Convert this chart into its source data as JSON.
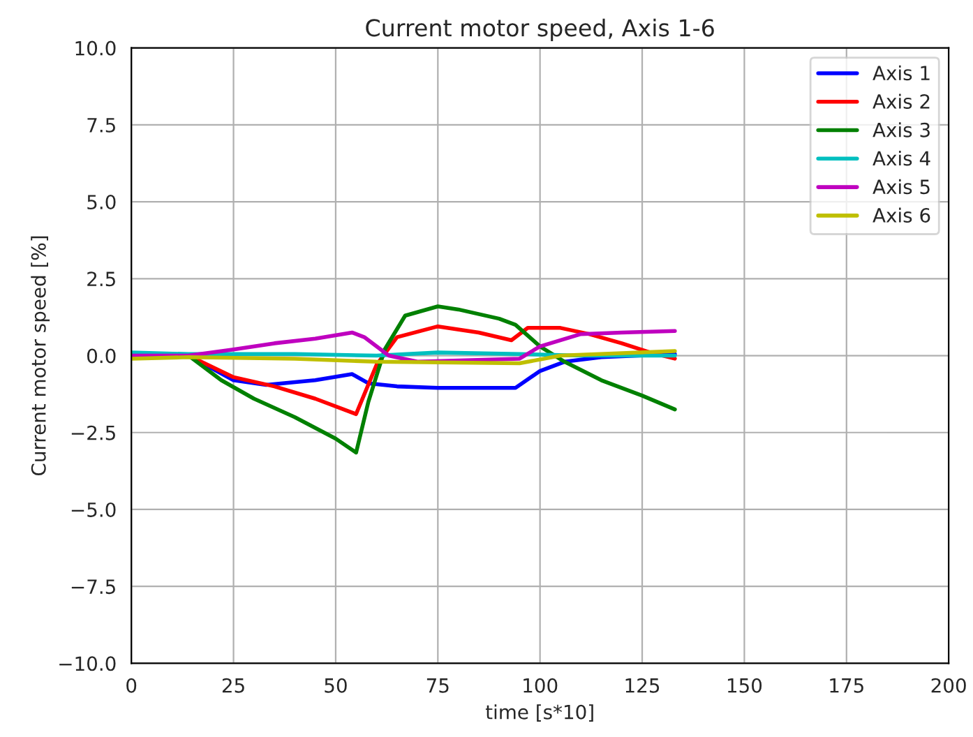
{
  "chart_data": {
    "type": "line",
    "title": "Current motor speed, Axis 1-6",
    "xlabel": "time [s*10]",
    "ylabel": "Current motor speed [%]",
    "xlim": [
      0,
      200
    ],
    "xticks": [
      0,
      25,
      50,
      75,
      100,
      125,
      150,
      175,
      200
    ],
    "ylim": [
      -10,
      10
    ],
    "yticks": [
      {
        "value": -10,
        "label": "−10.0"
      },
      {
        "value": -7.5,
        "label": "−7.5"
      },
      {
        "value": -5,
        "label": "−5.0"
      },
      {
        "value": -2.5,
        "label": "−2.5"
      },
      {
        "value": 0,
        "label": "0.0"
      },
      {
        "value": 2.5,
        "label": "2.5"
      },
      {
        "value": 5,
        "label": "5.0"
      },
      {
        "value": 7.5,
        "label": "7.5"
      },
      {
        "value": 10,
        "label": "10.0"
      }
    ],
    "grid": true,
    "legend": "top right",
    "series": [
      {
        "name": "Axis 1",
        "color": "#0000ff",
        "x": [
          0,
          14,
          25,
          33,
          45,
          54,
          58,
          65,
          75,
          85,
          94,
          100,
          106,
          115,
          125,
          133
        ],
        "values": [
          0,
          0,
          -0.8,
          -0.95,
          -0.8,
          -0.6,
          -0.9,
          -1.0,
          -1.05,
          -1.05,
          -1.05,
          -0.5,
          -0.2,
          -0.05,
          null,
          0.05
        ]
      },
      {
        "name": "Axis 2",
        "color": "#ff0000",
        "x": [
          0,
          14,
          25,
          35,
          45,
          55,
          60,
          65,
          75,
          85,
          93,
          97,
          105,
          112,
          120,
          127,
          133
        ],
        "values": [
          0,
          0,
          -0.7,
          -1.0,
          -1.4,
          -1.9,
          -0.3,
          0.6,
          0.95,
          0.75,
          0.5,
          0.9,
          0.9,
          0.7,
          0.4,
          0.1,
          -0.1
        ]
      },
      {
        "name": "Axis 3",
        "color": "#008000",
        "x": [
          0,
          14,
          22,
          30,
          40,
          50,
          55,
          58,
          62,
          67,
          75,
          80,
          90,
          94,
          100,
          106,
          115,
          125,
          133
        ],
        "values": [
          0,
          0,
          -0.8,
          -1.4,
          -2.0,
          -2.7,
          -3.15,
          -1.5,
          0.2,
          1.3,
          1.6,
          1.5,
          1.2,
          1.0,
          0.3,
          -0.2,
          -0.8,
          -1.3,
          -1.75
        ]
      },
      {
        "name": "Axis 4",
        "color": "#00bfbf",
        "x": [
          0,
          14,
          40,
          60,
          75,
          95,
          110,
          133
        ],
        "values": [
          0.1,
          0.05,
          0.05,
          0.0,
          0.1,
          0.05,
          0.0,
          0.0
        ]
      },
      {
        "name": "Axis 5",
        "color": "#bf00bf",
        "x": [
          0,
          14,
          25,
          35,
          45,
          54,
          57,
          63,
          70,
          95,
          100,
          110,
          120,
          133
        ],
        "values": [
          0,
          0,
          0.2,
          0.4,
          0.55,
          0.75,
          0.6,
          0.0,
          -0.2,
          -0.1,
          0.3,
          0.7,
          0.75,
          0.8
        ]
      },
      {
        "name": "Axis 6",
        "color": "#bfbf00",
        "x": [
          0,
          14,
          40,
          60,
          95,
          105,
          133
        ],
        "values": [
          -0.1,
          -0.05,
          -0.1,
          -0.2,
          -0.25,
          0.0,
          0.15
        ]
      }
    ]
  }
}
